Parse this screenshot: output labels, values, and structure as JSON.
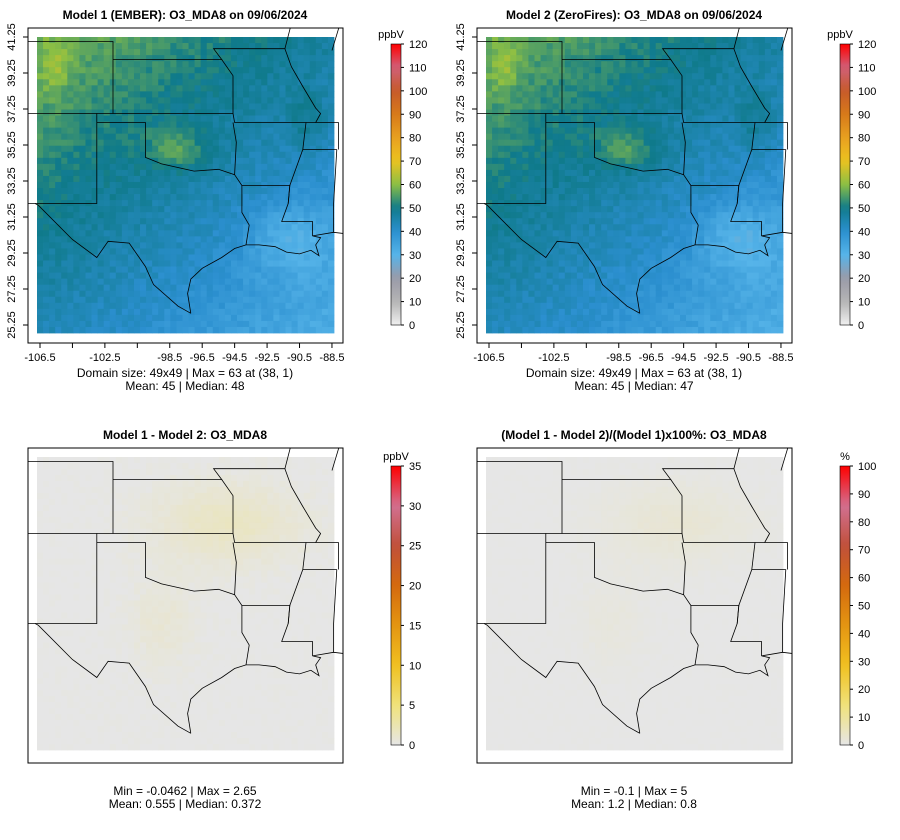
{
  "chart_data": [
    {
      "type": "heatmap",
      "title": "Model 1 (EMBER): O3_MDA8 on 09/06/2024",
      "unit": "ppbV",
      "colorbar_ticks": [
        0,
        10,
        20,
        30,
        40,
        50,
        60,
        70,
        80,
        90,
        100,
        110,
        120
      ],
      "clim": [
        0,
        120
      ],
      "stats": [
        "Domain size: 49x49 | Max = 63 at (38, 1)",
        "Mean: 45 |  Median: 48"
      ],
      "grid": [
        49,
        49
      ],
      "max": 63,
      "mean": 45,
      "median": 48,
      "field": "ozone"
    },
    {
      "type": "heatmap",
      "title": "Model 2 (ZeroFires): O3_MDA8 on 09/06/2024",
      "unit": "ppbV",
      "colorbar_ticks": [
        0,
        10,
        20,
        30,
        40,
        50,
        60,
        70,
        80,
        90,
        100,
        110,
        120
      ],
      "clim": [
        0,
        120
      ],
      "stats": [
        "Domain size: 49x49 | Max = 63 at (38, 1)",
        "Mean: 45 |  Median: 47"
      ],
      "grid": [
        49,
        49
      ],
      "max": 63,
      "mean": 45,
      "median": 47,
      "field": "ozone"
    },
    {
      "type": "heatmap",
      "title": "Model 1 - Model 2: O3_MDA8",
      "unit": "ppbV",
      "colorbar_ticks": [
        0,
        5,
        10,
        15,
        20,
        25,
        30,
        35
      ],
      "clim": [
        0,
        35
      ],
      "stats": [
        "Min = -0.0462 | Max = 2.65",
        "Mean: 0.555 |  Median: 0.372"
      ],
      "min": -0.0462,
      "max": 2.65,
      "mean": 0.555,
      "median": 0.372,
      "field": "diff"
    },
    {
      "type": "heatmap",
      "title": "(Model 1 - Model 2)/(Model 1)x100%: O3_MDA8",
      "unit": "%",
      "colorbar_ticks": [
        0,
        10,
        20,
        30,
        40,
        50,
        60,
        70,
        80,
        90,
        100
      ],
      "clim": [
        0,
        100
      ],
      "stats": [
        "Min = -0.1 | Max = 5",
        "Mean: 1.2 |  Median: 0.8"
      ],
      "min": -0.1,
      "max": 5,
      "mean": 1.2,
      "median": 0.8,
      "field": "pct"
    }
  ],
  "axes": {
    "x_ticks": [
      -106.5,
      -104.5,
      -102.5,
      -100.5,
      -98.5,
      -96.5,
      -94.5,
      -92.5,
      -90.5,
      -88.5
    ],
    "x_labels": [
      "-106.5",
      "",
      "-102.5",
      "",
      "-98.5",
      "-96.5",
      "-94.5",
      "-92.5",
      "-90.5",
      "-88.5"
    ],
    "y_ticks": [
      25.25,
      27.25,
      29.25,
      31.25,
      33.25,
      35.25,
      37.25,
      39.25,
      41.25
    ],
    "y_labels": [
      "25.25",
      "27.25",
      "29.25",
      "31.25",
      "33.25",
      "35.25",
      "37.25",
      "39.25",
      "41.25"
    ]
  },
  "colors": {
    "ozone_scale": [
      "#f0f0f0",
      "#b4b4b4",
      "#9a9aa8",
      "#56b4e9",
      "#2b8fcf",
      "#0f7a8a",
      "#8cbf44",
      "#ecc31f",
      "#e8a020",
      "#d77a1a",
      "#c65a2a",
      "#d0607a",
      "#ff0000"
    ],
    "diff_scale": [
      "#e6e6e6",
      "#f0e27a",
      "#f0c020",
      "#e49512",
      "#d46a0e",
      "#c0503a",
      "#d27090",
      "#ff0000"
    ]
  }
}
